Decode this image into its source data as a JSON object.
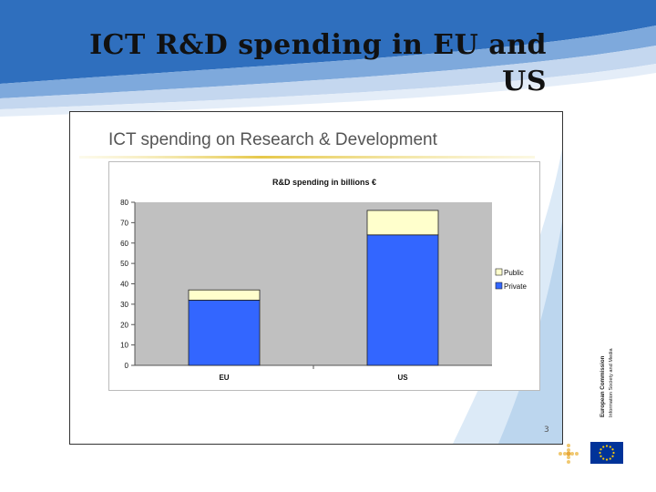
{
  "slide": {
    "title_line1": "ICT R&D spending in EU and",
    "title_line2": "US",
    "chart_heading": "ICT spending on Research & Development",
    "page_number": "3"
  },
  "logo": {
    "line1": "European Commission",
    "line2": "Information Society and Media",
    "icon": "eu-flag-icon"
  },
  "colors": {
    "header_blue": "#2f6fbe",
    "plot_bg": "#c0c0c0",
    "private": "#3366ff",
    "public": "#ffffcc"
  },
  "chart_data": {
    "type": "bar",
    "stacked": true,
    "title": "R&D spending in billions €",
    "categories": [
      "EU",
      "US"
    ],
    "series": [
      {
        "name": "Private",
        "values": [
          32,
          64
        ],
        "color": "#3366ff"
      },
      {
        "name": "Public",
        "values": [
          5,
          12
        ],
        "color": "#ffffcc"
      }
    ],
    "legend_order": [
      "Public",
      "Private"
    ],
    "ylim": [
      0,
      80
    ],
    "yticks": [
      0,
      10,
      20,
      30,
      40,
      50,
      60,
      70,
      80
    ],
    "legend_position": "right",
    "grid": false,
    "xlabel": "",
    "ylabel": ""
  }
}
